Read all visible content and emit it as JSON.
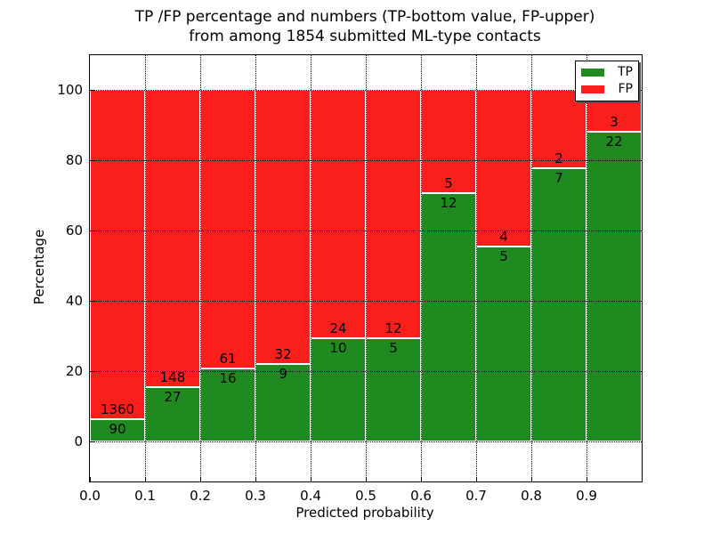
{
  "title": {
    "line1": "TP /FP percentage and numbers (TP-bottom value, FP-upper)",
    "line2": "from among 1854 submitted ML-type contacts"
  },
  "axes": {
    "xlabel": "Predicted probability",
    "ylabel": "Percentage",
    "xticks": [
      "0.0",
      "0.1",
      "0.2",
      "0.3",
      "0.4",
      "0.5",
      "0.6",
      "0.7",
      "0.8",
      "0.9"
    ],
    "yticks": [
      "0",
      "20",
      "40",
      "60",
      "80",
      "100"
    ]
  },
  "legend": {
    "items": [
      {
        "label": "TP",
        "color": "#1f8a1f"
      },
      {
        "label": "FP",
        "color": "#fa1f1a"
      }
    ]
  },
  "colors": {
    "tp": "#1f8a1f",
    "fp": "#fa1f1a",
    "bar_edge": "#ffffff",
    "grid": "#000000",
    "frame": "#000000",
    "background": "#ffffff"
  },
  "chart_data": {
    "type": "bar",
    "stacked": true,
    "normalized_to_percent": true,
    "title": "TP /FP percentage and numbers (TP-bottom value, FP-upper) from among 1854 submitted ML-type contacts",
    "xlabel": "Predicted probability",
    "ylabel": "Percentage",
    "categories": [
      "0.0-0.1",
      "0.1-0.2",
      "0.2-0.3",
      "0.3-0.4",
      "0.4-0.5",
      "0.5-0.6",
      "0.6-0.7",
      "0.7-0.8",
      "0.8-0.9",
      "0.9-1.0"
    ],
    "series": [
      {
        "name": "TP",
        "position": "bottom",
        "counts": [
          90,
          27,
          16,
          9,
          10,
          5,
          12,
          5,
          7,
          22
        ]
      },
      {
        "name": "FP",
        "position": "top",
        "counts": [
          1360,
          148,
          61,
          32,
          24,
          12,
          5,
          4,
          2,
          3
        ]
      }
    ],
    "tp_percent": [
      6.21,
      15.43,
      20.78,
      21.95,
      29.41,
      29.41,
      70.59,
      55.56,
      77.78,
      88.0
    ],
    "total_contacts": 1854,
    "xlim": [
      0.0,
      1.0
    ],
    "ylim_approx": [
      -11,
      110
    ],
    "yticks": [
      0,
      20,
      40,
      60,
      80,
      100
    ],
    "grid": true,
    "grid_style": "dotted",
    "legend_position": "upper right"
  }
}
